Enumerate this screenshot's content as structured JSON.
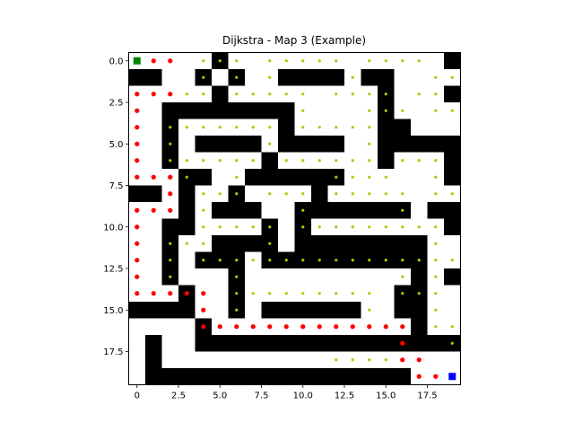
{
  "chart_data": {
    "type": "heatmap",
    "title": "Dijkstra - Map 3 (Example)",
    "xlabel": "",
    "ylabel": "",
    "grid": false,
    "xlim": [
      -0.5,
      19.5
    ],
    "ylim": [
      19.5,
      -0.5
    ],
    "x_ticks": [
      0.0,
      2.5,
      5.0,
      7.5,
      10.0,
      12.5,
      15.0,
      17.5
    ],
    "y_ticks": [
      0.0,
      2.5,
      5.0,
      7.5,
      10.0,
      12.5,
      15.0,
      17.5
    ],
    "x_tick_labels": [
      "0",
      "2.5",
      "5.0",
      "7.5",
      "10.0",
      "12.5",
      "15.0",
      "17.5"
    ],
    "y_tick_labels": [
      "0.0",
      "2.5",
      "5.0",
      "7.5",
      "10.0",
      "12.5",
      "15.0",
      "17.5"
    ],
    "maze_grid": [
      "00000100000000000001",
      "11001010011110110000",
      "00000100000000010001",
      "00111111110000010000",
      "00100000010000011000",
      "00101111011110011111",
      "00100000100000010001",
      "00011001111110000001",
      "11010010000100000000",
      "00010111001111111011",
      "00110000101000000001",
      "00100111101111111100",
      "00101110111111111100",
      "00100010000000000101",
      "00010010000000001100",
      "11110010111111001100",
      "00001000000000000100",
      "01001111111111111111",
      "01000000000000000000",
      "01111111111111111000"
    ],
    "colors": {
      "wall": "#000000",
      "open": "#ffffff",
      "explored": "#bfbf00",
      "path": "#ff0000",
      "start": "#008000",
      "goal": "#0000ff"
    },
    "start": [
      0,
      0
    ],
    "goal": [
      19,
      19
    ],
    "path_points": [
      [
        1,
        0
      ],
      [
        2,
        0
      ],
      [
        0,
        2
      ],
      [
        1,
        2
      ],
      [
        2,
        2
      ],
      [
        0,
        3
      ],
      [
        0,
        4
      ],
      [
        0,
        5
      ],
      [
        0,
        6
      ],
      [
        0,
        7
      ],
      [
        1,
        7
      ],
      [
        2,
        7
      ],
      [
        2,
        8
      ],
      [
        0,
        9
      ],
      [
        1,
        9
      ],
      [
        2,
        9
      ],
      [
        0,
        10
      ],
      [
        0,
        11
      ],
      [
        0,
        12
      ],
      [
        0,
        13
      ],
      [
        0,
        14
      ],
      [
        1,
        14
      ],
      [
        2,
        14
      ],
      [
        3,
        14
      ],
      [
        4,
        14
      ],
      [
        4,
        15
      ],
      [
        4,
        16
      ],
      [
        5,
        16
      ],
      [
        6,
        16
      ],
      [
        7,
        16
      ],
      [
        8,
        16
      ],
      [
        9,
        16
      ],
      [
        10,
        16
      ],
      [
        11,
        16
      ],
      [
        12,
        16
      ],
      [
        13,
        16
      ],
      [
        14,
        16
      ],
      [
        15,
        16
      ],
      [
        16,
        16
      ],
      [
        16,
        17
      ],
      [
        16,
        18
      ],
      [
        17,
        18
      ],
      [
        17,
        19
      ],
      [
        18,
        19
      ]
    ],
    "explored_points": [
      [
        4,
        0
      ],
      [
        5,
        0
      ],
      [
        6,
        0
      ],
      [
        8,
        0
      ],
      [
        9,
        0
      ],
      [
        10,
        0
      ],
      [
        11,
        0
      ],
      [
        12,
        0
      ],
      [
        14,
        0
      ],
      [
        15,
        0
      ],
      [
        16,
        0
      ],
      [
        17,
        0
      ],
      [
        4,
        1
      ],
      [
        6,
        1
      ],
      [
        8,
        1
      ],
      [
        13,
        1
      ],
      [
        18,
        1
      ],
      [
        19,
        1
      ],
      [
        3,
        2
      ],
      [
        4,
        2
      ],
      [
        6,
        2
      ],
      [
        7,
        2
      ],
      [
        8,
        2
      ],
      [
        9,
        2
      ],
      [
        10,
        2
      ],
      [
        12,
        2
      ],
      [
        13,
        2
      ],
      [
        14,
        2
      ],
      [
        15,
        2
      ],
      [
        17,
        2
      ],
      [
        18,
        2
      ],
      [
        10,
        3
      ],
      [
        14,
        3
      ],
      [
        15,
        3
      ],
      [
        16,
        3
      ],
      [
        18,
        3
      ],
      [
        19,
        3
      ],
      [
        2,
        4
      ],
      [
        3,
        4
      ],
      [
        4,
        4
      ],
      [
        5,
        4
      ],
      [
        6,
        4
      ],
      [
        7,
        4
      ],
      [
        8,
        4
      ],
      [
        10,
        4
      ],
      [
        11,
        4
      ],
      [
        12,
        4
      ],
      [
        13,
        4
      ],
      [
        14,
        4
      ],
      [
        2,
        5
      ],
      [
        8,
        5
      ],
      [
        14,
        5
      ],
      [
        2,
        6
      ],
      [
        3,
        6
      ],
      [
        4,
        6
      ],
      [
        5,
        6
      ],
      [
        6,
        6
      ],
      [
        7,
        6
      ],
      [
        9,
        6
      ],
      [
        10,
        6
      ],
      [
        11,
        6
      ],
      [
        12,
        6
      ],
      [
        13,
        6
      ],
      [
        14,
        6
      ],
      [
        16,
        6
      ],
      [
        17,
        6
      ],
      [
        18,
        6
      ],
      [
        3,
        7
      ],
      [
        6,
        7
      ],
      [
        12,
        7
      ],
      [
        13,
        7
      ],
      [
        14,
        7
      ],
      [
        15,
        7
      ],
      [
        18,
        7
      ],
      [
        4,
        8
      ],
      [
        5,
        8
      ],
      [
        6,
        8
      ],
      [
        8,
        8
      ],
      [
        9,
        8
      ],
      [
        10,
        8
      ],
      [
        12,
        8
      ],
      [
        13,
        8
      ],
      [
        14,
        8
      ],
      [
        15,
        8
      ],
      [
        16,
        8
      ],
      [
        18,
        8
      ],
      [
        19,
        8
      ],
      [
        4,
        9
      ],
      [
        10,
        9
      ],
      [
        16,
        9
      ],
      [
        4,
        10
      ],
      [
        5,
        10
      ],
      [
        6,
        10
      ],
      [
        7,
        10
      ],
      [
        8,
        10
      ],
      [
        10,
        10
      ],
      [
        11,
        10
      ],
      [
        12,
        10
      ],
      [
        13,
        10
      ],
      [
        14,
        10
      ],
      [
        15,
        10
      ],
      [
        16,
        10
      ],
      [
        17,
        10
      ],
      [
        18,
        10
      ],
      [
        2,
        11
      ],
      [
        3,
        11
      ],
      [
        4,
        11
      ],
      [
        8,
        11
      ],
      [
        18,
        11
      ],
      [
        2,
        12
      ],
      [
        4,
        12
      ],
      [
        5,
        12
      ],
      [
        6,
        12
      ],
      [
        7,
        12
      ],
      [
        8,
        12
      ],
      [
        9,
        12
      ],
      [
        10,
        12
      ],
      [
        11,
        12
      ],
      [
        12,
        12
      ],
      [
        13,
        12
      ],
      [
        14,
        12
      ],
      [
        15,
        12
      ],
      [
        16,
        12
      ],
      [
        17,
        12
      ],
      [
        18,
        12
      ],
      [
        19,
        12
      ],
      [
        2,
        13
      ],
      [
        6,
        13
      ],
      [
        16,
        13
      ],
      [
        18,
        13
      ],
      [
        6,
        14
      ],
      [
        7,
        14
      ],
      [
        8,
        14
      ],
      [
        9,
        14
      ],
      [
        10,
        14
      ],
      [
        11,
        14
      ],
      [
        12,
        14
      ],
      [
        13,
        14
      ],
      [
        14,
        14
      ],
      [
        16,
        14
      ],
      [
        17,
        14
      ],
      [
        18,
        14
      ],
      [
        6,
        15
      ],
      [
        14,
        15
      ],
      [
        18,
        15
      ],
      [
        18,
        16
      ],
      [
        19,
        16
      ],
      [
        19,
        17
      ],
      [
        12,
        18
      ],
      [
        13,
        18
      ],
      [
        14,
        18
      ],
      [
        15,
        18
      ]
    ]
  }
}
